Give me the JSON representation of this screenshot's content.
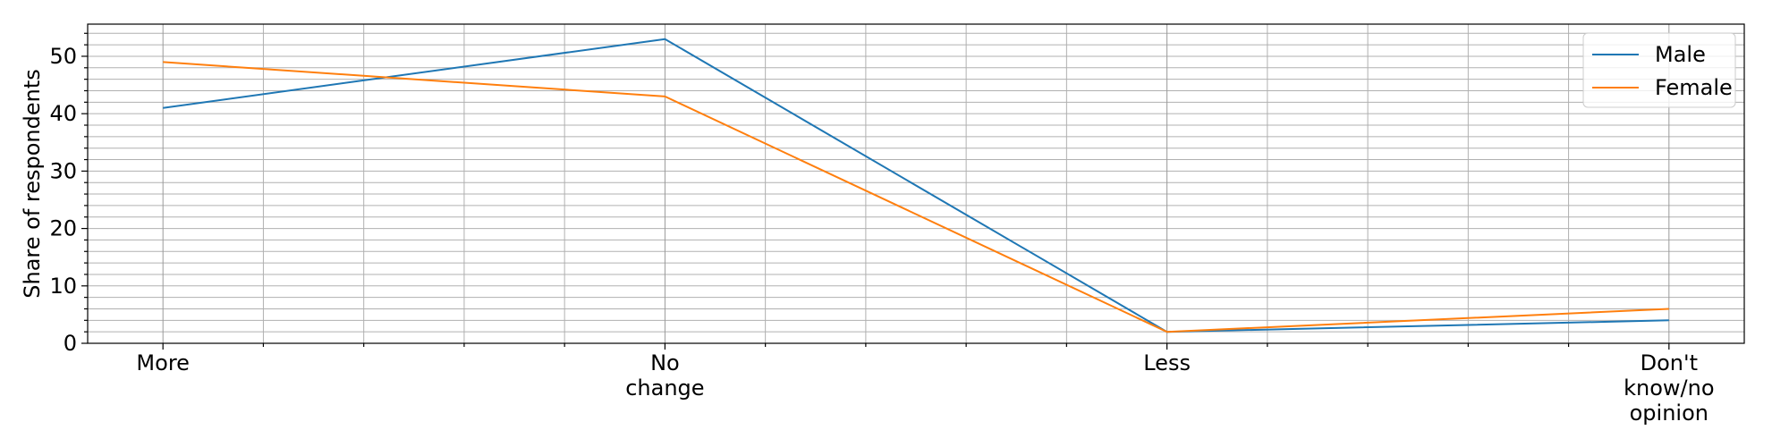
{
  "chart_data": {
    "type": "line",
    "categories": [
      "More",
      "No\nchange",
      "Less",
      "Don't\nknow/no\nopinion"
    ],
    "series": [
      {
        "name": "Male",
        "values": [
          41,
          53,
          2,
          4
        ],
        "color": "#1f77b4"
      },
      {
        "name": "Female",
        "values": [
          49,
          43,
          2,
          6
        ],
        "color": "#ff7f0e"
      }
    ],
    "title": "",
    "xlabel": "",
    "ylabel": "Share of respondents",
    "ylim": [
      0,
      55.6
    ],
    "yticks": [
      0,
      10,
      20,
      30,
      40,
      50
    ],
    "grid": true,
    "legend_position": "top-right"
  }
}
